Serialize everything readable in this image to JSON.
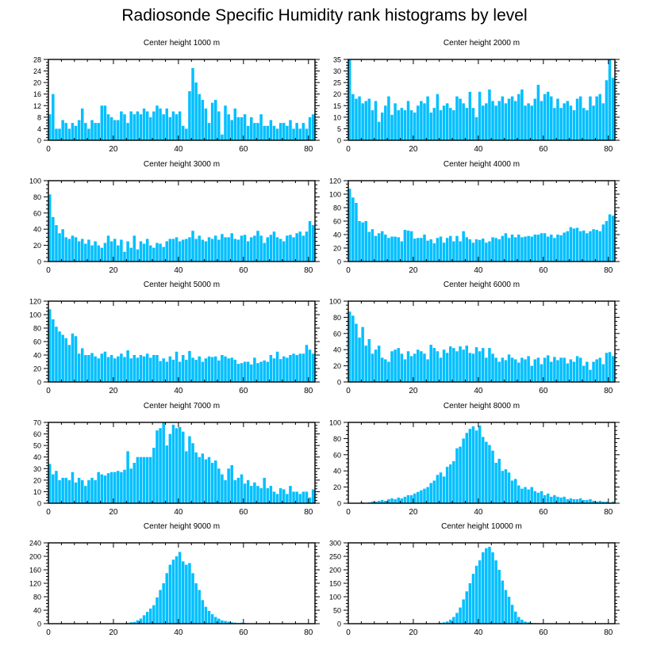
{
  "figure": {
    "title": "Radiosonde Specific Humidity rank histograms by level",
    "bar_color": "#00BFFF",
    "axis_color": "#000000"
  },
  "chart_data": [
    {
      "type": "bar",
      "title": "Center height 1000 m",
      "xlim": [
        0,
        82
      ],
      "ylim": [
        0,
        28
      ],
      "yticks": [
        0,
        4,
        8,
        12,
        16,
        20,
        24,
        28
      ],
      "xticks": [
        0,
        20,
        40,
        60,
        80
      ],
      "values": [
        9,
        16,
        4,
        4,
        7,
        6,
        4,
        6,
        5,
        7,
        11,
        6,
        4,
        7,
        6,
        6,
        12,
        12,
        9,
        8,
        7,
        7,
        10,
        9,
        6,
        10,
        9,
        10,
        9,
        11,
        10,
        8,
        10,
        12,
        11,
        9,
        11,
        8,
        10,
        9,
        10,
        5,
        4,
        17,
        25,
        20,
        16,
        14,
        11,
        6,
        13,
        14,
        10,
        2,
        12,
        9,
        7,
        11,
        8,
        8,
        9,
        5,
        8,
        6,
        6,
        9,
        5,
        5,
        7,
        5,
        4,
        6,
        6,
        5,
        7,
        4,
        6,
        4,
        6,
        4,
        8,
        9
      ]
    },
    {
      "type": "bar",
      "title": "Center height 2000 m",
      "xlim": [
        0,
        82
      ],
      "ylim": [
        0,
        35
      ],
      "yticks": [
        0,
        5,
        10,
        15,
        20,
        25,
        30,
        35
      ],
      "xticks": [
        0,
        20,
        40,
        60,
        80
      ],
      "values": [
        35,
        20,
        18,
        19,
        16,
        17,
        18,
        13,
        17,
        8,
        12,
        15,
        19,
        11,
        16,
        13,
        14,
        13,
        17,
        13,
        12,
        15,
        17,
        16,
        19,
        12,
        14,
        20,
        13,
        15,
        16,
        14,
        13,
        19,
        18,
        16,
        14,
        21,
        14,
        10,
        21,
        15,
        16,
        22,
        17,
        15,
        17,
        19,
        16,
        18,
        19,
        17,
        20,
        22,
        15,
        16,
        15,
        18,
        24,
        17,
        20,
        21,
        19,
        14,
        18,
        14,
        16,
        17,
        15,
        13,
        18,
        19,
        14,
        13,
        19,
        15,
        19,
        20,
        16,
        26,
        35,
        27
      ]
    },
    {
      "type": "bar",
      "title": "Center height 3000 m",
      "xlim": [
        0,
        82
      ],
      "ylim": [
        0,
        100
      ],
      "yticks": [
        0,
        20,
        40,
        60,
        80,
        100
      ],
      "xticks": [
        0,
        20,
        40,
        60,
        80
      ],
      "values": [
        83,
        55,
        45,
        35,
        40,
        30,
        28,
        32,
        30,
        25,
        28,
        22,
        27,
        20,
        25,
        20,
        17,
        23,
        32,
        25,
        28,
        20,
        27,
        12,
        25,
        17,
        32,
        15,
        25,
        22,
        28,
        20,
        17,
        23,
        22,
        18,
        25,
        28,
        28,
        30,
        25,
        27,
        28,
        30,
        38,
        28,
        32,
        27,
        25,
        30,
        28,
        32,
        27,
        34,
        30,
        30,
        35,
        28,
        27,
        32,
        33,
        25,
        30,
        32,
        38,
        32,
        23,
        30,
        33,
        37,
        30,
        28,
        25,
        32,
        33,
        30,
        35,
        37,
        32,
        37,
        50,
        45
      ]
    },
    {
      "type": "bar",
      "title": "Center height 4000 m",
      "xlim": [
        0,
        82
      ],
      "ylim": [
        0,
        120
      ],
      "yticks": [
        0,
        20,
        40,
        60,
        80,
        100,
        120
      ],
      "xticks": [
        0,
        20,
        40,
        60,
        80
      ],
      "values": [
        108,
        95,
        87,
        60,
        58,
        60,
        44,
        48,
        38,
        42,
        45,
        40,
        35,
        37,
        37,
        36,
        30,
        47,
        46,
        45,
        34,
        35,
        35,
        40,
        31,
        33,
        27,
        35,
        37,
        28,
        35,
        38,
        30,
        38,
        30,
        45,
        36,
        33,
        28,
        33,
        32,
        34,
        28,
        30,
        36,
        35,
        33,
        38,
        42,
        35,
        40,
        36,
        40,
        36,
        37,
        38,
        37,
        40,
        40,
        42,
        42,
        37,
        40,
        35,
        40,
        39,
        43,
        45,
        51,
        49,
        50,
        45,
        46,
        42,
        45,
        48,
        47,
        45,
        55,
        60,
        70,
        68
      ]
    },
    {
      "type": "bar",
      "title": "Center height 5000 m",
      "xlim": [
        0,
        82
      ],
      "ylim": [
        0,
        120
      ],
      "yticks": [
        0,
        20,
        40,
        60,
        80,
        100,
        120
      ],
      "xticks": [
        0,
        20,
        40,
        60,
        80
      ],
      "values": [
        108,
        93,
        82,
        75,
        70,
        65,
        55,
        72,
        68,
        42,
        50,
        40,
        40,
        43,
        38,
        35,
        42,
        45,
        37,
        40,
        35,
        38,
        42,
        37,
        47,
        35,
        40,
        36,
        40,
        38,
        42,
        36,
        40,
        40,
        31,
        35,
        30,
        38,
        33,
        45,
        30,
        40,
        33,
        46,
        36,
        33,
        38,
        30,
        35,
        38,
        37,
        38,
        32,
        40,
        38,
        35,
        36,
        33,
        27,
        28,
        30,
        30,
        26,
        36,
        28,
        30,
        32,
        30,
        40,
        35,
        45,
        34,
        38,
        36,
        40,
        42,
        40,
        42,
        42,
        55,
        48,
        42
      ]
    },
    {
      "type": "bar",
      "title": "Center height 6000 m",
      "xlim": [
        0,
        82
      ],
      "ylim": [
        0,
        100
      ],
      "yticks": [
        0,
        20,
        40,
        60,
        80,
        100
      ],
      "xticks": [
        0,
        20,
        40,
        60,
        80
      ],
      "values": [
        87,
        82,
        72,
        55,
        68,
        45,
        53,
        35,
        40,
        45,
        30,
        28,
        25,
        38,
        40,
        42,
        35,
        28,
        38,
        32,
        35,
        40,
        38,
        35,
        28,
        46,
        42,
        38,
        30,
        40,
        36,
        44,
        42,
        38,
        44,
        40,
        45,
        36,
        35,
        43,
        38,
        42,
        30,
        42,
        35,
        30,
        25,
        30,
        27,
        34,
        30,
        28,
        24,
        30,
        28,
        32,
        20,
        28,
        30,
        22,
        30,
        33,
        25,
        31,
        27,
        30,
        30,
        23,
        28,
        25,
        32,
        30,
        20,
        25,
        15,
        25,
        28,
        30,
        22,
        36,
        37,
        32
      ]
    },
    {
      "type": "bar",
      "title": "Center height 7000 m",
      "xlim": [
        0,
        82
      ],
      "ylim": [
        0,
        70
      ],
      "yticks": [
        0,
        10,
        20,
        30,
        40,
        50,
        60,
        70
      ],
      "xticks": [
        0,
        20,
        40,
        60,
        80
      ],
      "values": [
        34,
        25,
        28,
        20,
        22,
        22,
        20,
        27,
        18,
        22,
        20,
        15,
        20,
        22,
        20,
        27,
        25,
        24,
        26,
        27,
        27,
        28,
        27,
        29,
        45,
        30,
        35,
        40,
        40,
        40,
        40,
        40,
        48,
        63,
        65,
        70,
        50,
        60,
        68,
        65,
        66,
        62,
        45,
        58,
        52,
        44,
        40,
        43,
        38,
        40,
        35,
        37,
        30,
        25,
        20,
        30,
        33,
        20,
        22,
        25,
        17,
        20,
        15,
        18,
        15,
        13,
        22,
        13,
        15,
        10,
        8,
        13,
        12,
        8,
        15,
        10,
        10,
        8,
        10,
        10,
        5,
        12
      ]
    },
    {
      "type": "bar",
      "title": "Center height 8000 m",
      "xlim": [
        0,
        82
      ],
      "ylim": [
        0,
        100
      ],
      "yticks": [
        0,
        20,
        40,
        60,
        80,
        100
      ],
      "xticks": [
        0,
        20,
        40,
        60,
        80
      ],
      "values": [
        0,
        0,
        0,
        0,
        1,
        0,
        1,
        2,
        2,
        3,
        4,
        3,
        5,
        6,
        5,
        7,
        6,
        8,
        10,
        10,
        12,
        14,
        16,
        18,
        20,
        25,
        28,
        35,
        38,
        33,
        45,
        48,
        52,
        68,
        70,
        80,
        87,
        92,
        95,
        90,
        96,
        82,
        76,
        72,
        65,
        50,
        55,
        40,
        42,
        38,
        28,
        30,
        22,
        18,
        20,
        17,
        20,
        15,
        13,
        15,
        10,
        12,
        8,
        10,
        8,
        7,
        8,
        5,
        6,
        5,
        5,
        6,
        4,
        4,
        5,
        3,
        2,
        3,
        2,
        2,
        1,
        2
      ]
    },
    {
      "type": "bar",
      "title": "Center height 9000 m",
      "xlim": [
        0,
        82
      ],
      "ylim": [
        0,
        240
      ],
      "yticks": [
        0,
        40,
        80,
        120,
        160,
        200,
        240
      ],
      "xticks": [
        0,
        20,
        40,
        60,
        80
      ],
      "values": [
        0,
        0,
        0,
        0,
        0,
        0,
        0,
        0,
        0,
        0,
        0,
        0,
        0,
        0,
        0,
        0,
        0,
        0,
        0,
        0,
        0,
        0,
        0,
        1,
        2,
        4,
        5,
        10,
        15,
        25,
        35,
        45,
        55,
        78,
        100,
        120,
        150,
        175,
        190,
        200,
        213,
        185,
        175,
        180,
        150,
        120,
        100,
        70,
        50,
        38,
        28,
        20,
        15,
        10,
        8,
        6,
        4,
        3,
        2,
        3,
        2,
        1,
        1,
        1,
        1,
        0,
        0,
        0,
        0,
        0,
        0,
        0,
        0,
        0,
        0,
        0,
        0,
        0,
        0,
        0,
        0,
        0
      ]
    },
    {
      "type": "bar",
      "title": "Center height 10000 m",
      "xlim": [
        0,
        82
      ],
      "ylim": [
        0,
        300
      ],
      "yticks": [
        0,
        50,
        100,
        150,
        200,
        250,
        300
      ],
      "xticks": [
        0,
        20,
        40,
        60,
        80
      ],
      "values": [
        0,
        0,
        0,
        0,
        0,
        0,
        0,
        0,
        0,
        0,
        0,
        0,
        0,
        0,
        0,
        0,
        0,
        0,
        0,
        0,
        0,
        0,
        0,
        0,
        0,
        0,
        1,
        2,
        3,
        5,
        8,
        15,
        25,
        40,
        60,
        90,
        120,
        150,
        185,
        215,
        235,
        265,
        280,
        285,
        265,
        235,
        200,
        160,
        125,
        100,
        70,
        45,
        25,
        15,
        8,
        5,
        3,
        2,
        1,
        1,
        0,
        0,
        0,
        0,
        0,
        0,
        0,
        0,
        0,
        0,
        0,
        0,
        0,
        0,
        0,
        0,
        0,
        0,
        0,
        0,
        0,
        0
      ]
    }
  ]
}
